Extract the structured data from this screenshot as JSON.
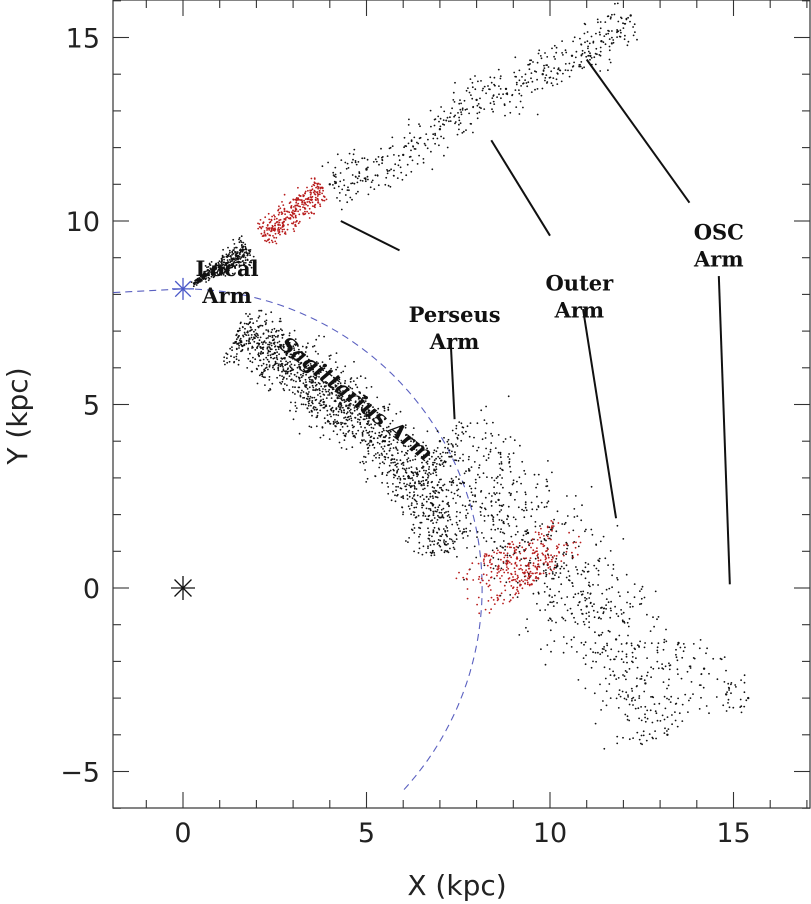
{
  "chart_data": {
    "type": "scatter",
    "title": "",
    "xlabel": "X (kpc)",
    "ylabel": "Y (kpc)",
    "xlim": [
      -1.9,
      17.2
    ],
    "ylim": [
      -6,
      16
    ],
    "xticks": [
      0,
      5,
      10,
      15
    ],
    "yticks": [
      -5,
      0,
      5,
      10,
      15
    ],
    "xtick_labels": [
      "0",
      "5",
      "10",
      "15"
    ],
    "ytick_labels": [
      "−5",
      "0",
      "5",
      "10",
      "15"
    ],
    "colors": {
      "points": "#111111",
      "highlight": "#b81c1c",
      "sun": "#4a58c8",
      "circle": "#5a60c0",
      "axis": "#333333"
    },
    "galactic_center": {
      "x": 0,
      "y": 0
    },
    "sun": {
      "x": 0,
      "y": 8.15
    },
    "solar_circle": {
      "center": [
        0,
        0
      ],
      "radius": 8.15,
      "style": "dashed"
    },
    "arms": [
      {
        "name": "Local Arm",
        "label_lines": [
          "Local",
          "Arm"
        ],
        "label_at": [
          1.2,
          8.5
        ],
        "leader": null
      },
      {
        "name": "Perseus Arm",
        "label_lines": [
          "Perseus",
          "Arm"
        ],
        "label_at": [
          7.4,
          7.25
        ],
        "leader": [
          [
            4.3,
            10.0
          ],
          [
            5.9,
            9.2
          ],
          [
            7.3,
            6.6
          ],
          [
            7.4,
            4.6
          ]
        ]
      },
      {
        "name": "Outer Arm",
        "label_lines": [
          "Outer",
          "Arm"
        ],
        "label_at": [
          10.8,
          8.1
        ],
        "leader": [
          [
            8.4,
            12.2
          ],
          [
            10.0,
            9.6
          ],
          [
            10.9,
            7.6
          ],
          [
            11.8,
            1.9
          ]
        ]
      },
      {
        "name": "OSC Arm",
        "label_lines": [
          "OSC",
          "Arm"
        ],
        "label_at": [
          14.6,
          9.5
        ],
        "leader": [
          [
            11.0,
            14.4
          ],
          [
            13.8,
            10.5
          ],
          [
            14.6,
            8.5
          ],
          [
            14.9,
            0.1
          ]
        ]
      },
      {
        "name": "Sagittarius Arm",
        "label_lines": [
          "Sagittarius Arm"
        ],
        "label_at": [
          4.6,
          5.0
        ],
        "rotate": 38,
        "leader": null
      }
    ],
    "series": [
      {
        "name": "Local Arm",
        "color": "black",
        "x": [
          0.3,
          0.6,
          0.9,
          1.2,
          1.5,
          1.8
        ],
        "y": [
          8.3,
          8.5,
          8.7,
          8.85,
          9.05,
          9.2
        ]
      },
      {
        "name": "Local Arm",
        "color": "red",
        "x": [
          2.2,
          2.6,
          3.0,
          3.4,
          3.8
        ],
        "y": [
          9.6,
          9.9,
          10.2,
          10.6,
          10.9
        ]
      },
      {
        "name": "Perseus Arm",
        "color": "black",
        "x": [
          4.0,
          5.0,
          6.0,
          7.0,
          8.0,
          8.8,
          9.8,
          10.6,
          11.4,
          12.2
        ],
        "y": [
          11.0,
          11.4,
          11.8,
          12.5,
          13.3,
          13.6,
          14.0,
          14.5,
          14.9,
          15.6
        ]
      },
      {
        "name": "Sagittarius Arm",
        "color": "black",
        "x": [
          1.5,
          2.5,
          3.5,
          4.5,
          5.5,
          6.5,
          7.2
        ],
        "y": [
          7.0,
          6.4,
          5.6,
          4.9,
          4.0,
          2.8,
          1.0
        ]
      },
      {
        "name": "Outer Arm",
        "color": "black",
        "x": [
          7.0,
          7.8,
          8.6,
          9.4,
          10.2,
          11.0,
          11.8,
          12.6,
          13.2
        ],
        "y": [
          4.0,
          3.2,
          2.4,
          1.5,
          0.6,
          -0.5,
          -1.4,
          -2.6,
          -4.0
        ]
      },
      {
        "name": "Outer Arm",
        "color": "red",
        "x": [
          8.9,
          9.1,
          9.3,
          9.5
        ],
        "y": [
          1.2,
          0.8,
          0.4,
          0.1
        ]
      },
      {
        "name": "OSC Arm",
        "color": "black",
        "x": [
          13.5,
          14.2,
          14.8,
          15.4
        ],
        "y": [
          -1.5,
          -2.2,
          -2.9,
          -3.0
        ]
      }
    ]
  }
}
